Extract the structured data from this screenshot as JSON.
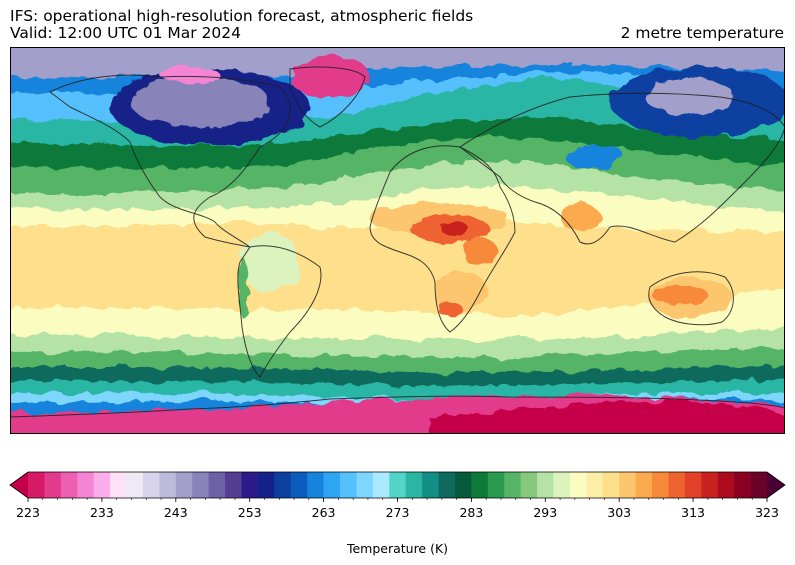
{
  "header": {
    "title_line1": "IFS: operational high-resolution forecast, atmospheric fields",
    "title_line2": "Valid: 12:00 UTC 01 Mar 2024",
    "variable": "2 metre temperature"
  },
  "colorbar": {
    "label": "Temperature (K)",
    "min": 223,
    "max": 323,
    "step": 2,
    "extend": "both",
    "ticks": [
      "223",
      "233",
      "243",
      "253",
      "263",
      "273",
      "283",
      "293",
      "303",
      "313",
      "323"
    ],
    "colors": [
      "#c5004a",
      "#d51a68",
      "#e23a8c",
      "#ec5fb1",
      "#f585d4",
      "#fbaee9",
      "#fde1f5",
      "#eeeaf5",
      "#d6d4ea",
      "#bdbadb",
      "#a39fcb",
      "#8883b9",
      "#6e62a6",
      "#533e92",
      "#2a1a8a",
      "#142188",
      "#0d3fa0",
      "#0b5cbd",
      "#1683dc",
      "#2ea5f2",
      "#55c0fb",
      "#7fd6fd",
      "#aae9fe",
      "#53d4c8",
      "#2bb6a4",
      "#138e84",
      "#0e6a5c",
      "#065a3a",
      "#0d7a3a",
      "#2a9a4c",
      "#55b466",
      "#86c97e",
      "#b5e2a5",
      "#dcf3bd",
      "#fbfcc0",
      "#fdeea7",
      "#fddf8c",
      "#fcc66e",
      "#fbaa4d",
      "#f7893a",
      "#ef6331",
      "#e04128",
      "#c8221f",
      "#ac0b1d",
      "#8b0020",
      "#6b0029",
      "#4a0034"
    ]
  },
  "map": {
    "projection": "equirectangular",
    "background": "#ffe39a",
    "land_outline": "#1e1e1e"
  }
}
